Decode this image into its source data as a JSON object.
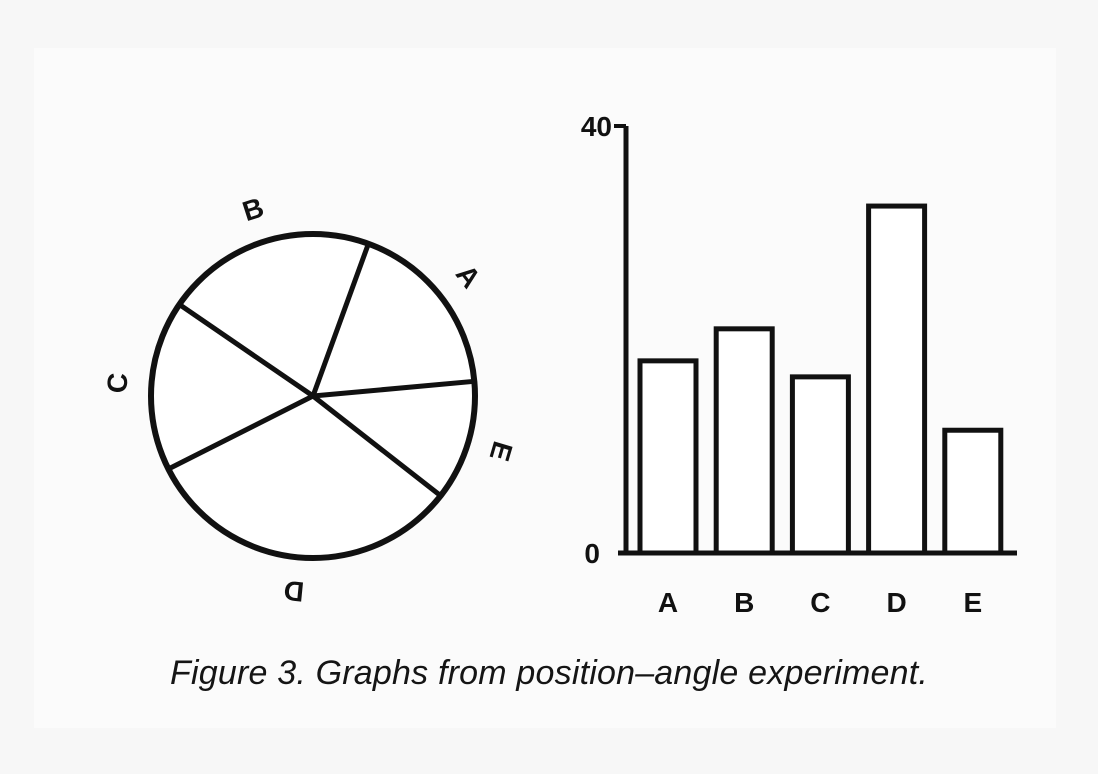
{
  "chart_data": [
    {
      "type": "pie",
      "categories": [
        "A",
        "B",
        "C",
        "D",
        "E"
      ],
      "values": [
        18,
        21,
        17,
        32,
        12
      ],
      "labels": [
        "A",
        "B",
        "C",
        "D",
        "E"
      ]
    },
    {
      "type": "bar",
      "categories": [
        "A",
        "B",
        "C",
        "D",
        "E"
      ],
      "values": [
        18,
        21,
        16.5,
        32.5,
        11.5
      ],
      "ylim": [
        0,
        40
      ],
      "yticks": [
        "0",
        "40"
      ],
      "grid": false
    }
  ],
  "caption": "Figure 3. Graphs from position–angle experiment.",
  "colors": {
    "ink": "#111111",
    "fill": "#ffffff",
    "background": "#f7f7f7"
  }
}
